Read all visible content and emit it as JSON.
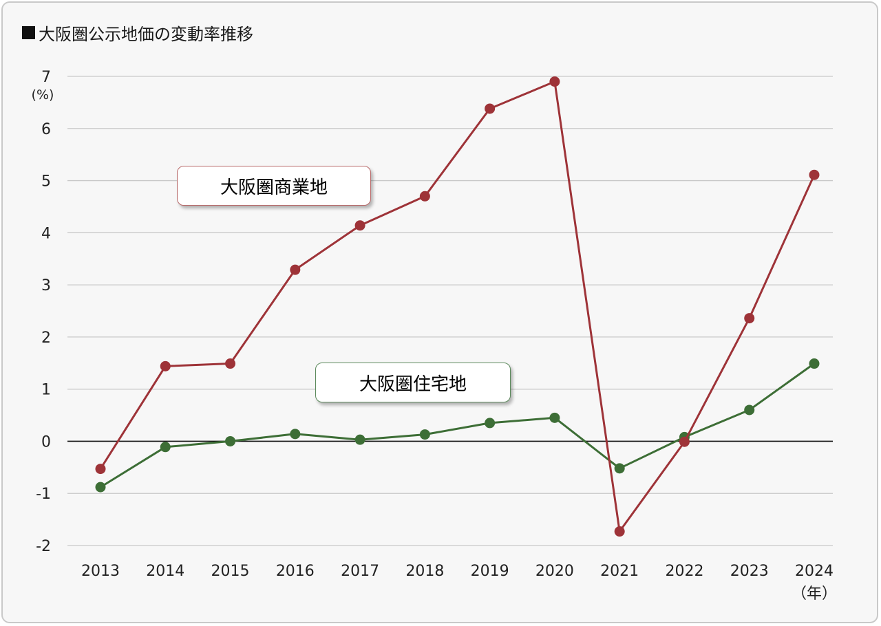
{
  "title": "大阪圏公示地価の変動率推移",
  "colors": {
    "commercial": "#9e3338",
    "residential": "#3d6e36",
    "grid": "#c8c8c8",
    "zero": "#111111"
  },
  "chart_data": {
    "type": "line",
    "title": "大阪圏公示地価の変動率推移",
    "x_unit": "（年）",
    "y_unit": "(%)",
    "categories": [
      "2013",
      "2014",
      "2015",
      "2016",
      "2017",
      "2018",
      "2019",
      "2020",
      "2021",
      "2022",
      "2023",
      "2024"
    ],
    "ylim": [
      -2,
      7
    ],
    "yticks": [
      7,
      6,
      5,
      4,
      3,
      2,
      1,
      0,
      -1,
      -2
    ],
    "grid": true,
    "series": [
      {
        "name": "大阪圏商業地",
        "color": "#9e3338",
        "values": [
          -0.53,
          1.44,
          1.49,
          3.29,
          4.14,
          4.7,
          6.38,
          6.9,
          -1.73,
          -0.01,
          2.36,
          5.11
        ]
      },
      {
        "name": "大阪圏住宅地",
        "color": "#3d6e36",
        "values": [
          -0.88,
          -0.11,
          0.0,
          0.14,
          0.03,
          0.13,
          0.35,
          0.45,
          -0.52,
          0.08,
          0.6,
          1.49
        ]
      }
    ]
  }
}
